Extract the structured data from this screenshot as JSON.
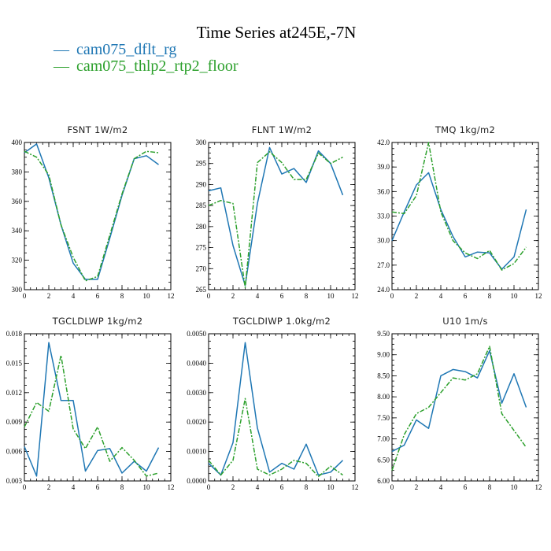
{
  "figure": {
    "title": "Time Series at245E,-7N",
    "colors": {
      "s1": "#1f77b4",
      "s2": "#2ca02c"
    }
  },
  "legend": [
    {
      "marker": "—",
      "label": "cam075_dflt_rg"
    },
    {
      "marker": "—",
      "label": "cam075_thlp2_rtp2_floor"
    }
  ],
  "chart_data": [
    {
      "type": "line",
      "title": "FSNT   1W/m2",
      "xlim": [
        0,
        12
      ],
      "ylim": [
        300,
        400
      ],
      "xticks": [
        0,
        2,
        4,
        6,
        8,
        10,
        12
      ],
      "yticks": [
        300,
        320,
        340,
        360,
        380,
        400
      ],
      "ytick_labels": [
        "300",
        "320",
        "340",
        "360",
        "380",
        "400"
      ],
      "x": [
        0,
        1,
        2,
        3,
        4,
        5,
        6,
        7,
        8,
        9,
        10,
        11
      ],
      "series": [
        {
          "name": "cam075_dflt_rg",
          "values": [
            393,
            399,
            376,
            344,
            318,
            307,
            307,
            335,
            364,
            389,
            391,
            385
          ]
        },
        {
          "name": "cam075_thlp2_rtp2_floor",
          "values": [
            394,
            390,
            378,
            344,
            322,
            306,
            309,
            337,
            365,
            389,
            394,
            393
          ]
        }
      ]
    },
    {
      "type": "line",
      "title": "FLNT   1W/m2",
      "xlim": [
        0,
        12
      ],
      "ylim": [
        265,
        300
      ],
      "xticks": [
        0,
        2,
        4,
        6,
        8,
        10,
        12
      ],
      "yticks": [
        265,
        270,
        275,
        280,
        285,
        290,
        295,
        300
      ],
      "ytick_labels": [
        "265",
        "270",
        "275",
        "280",
        "285",
        "290",
        "295",
        "300"
      ],
      "x": [
        0,
        1,
        2,
        3,
        4,
        5,
        6,
        7,
        8,
        9,
        10,
        11
      ],
      "series": [
        {
          "name": "cam075_dflt_rg",
          "values": [
            288.5,
            289.2,
            275.5,
            266.0,
            285.5,
            298.8,
            292.5,
            293.8,
            290.5,
            298.0,
            295.0,
            287.5
          ]
        },
        {
          "name": "cam075_thlp2_rtp2_floor",
          "values": [
            285.0,
            286.2,
            285.5,
            265.5,
            295.2,
            297.8,
            295.2,
            291.2,
            291.2,
            297.5,
            295.0,
            296.5
          ]
        }
      ]
    },
    {
      "type": "line",
      "title": "TMQ   1kg/m2",
      "xlim": [
        0,
        12
      ],
      "ylim": [
        24.0,
        42.0
      ],
      "xticks": [
        0,
        2,
        4,
        6,
        8,
        10,
        12
      ],
      "yticks": [
        24.0,
        27.0,
        30.0,
        33.0,
        36.0,
        39.0,
        42.0
      ],
      "ytick_labels": [
        "24.0",
        "27.0",
        "30.0",
        "33.0",
        "36.0",
        "39.0",
        "42.0"
      ],
      "x": [
        0,
        1,
        2,
        3,
        4,
        5,
        6,
        7,
        8,
        9,
        10,
        11
      ],
      "series": [
        {
          "name": "cam075_dflt_rg",
          "values": [
            30.0,
            33.5,
            36.8,
            38.3,
            33.8,
            30.5,
            28.0,
            28.6,
            28.5,
            26.5,
            28.0,
            33.8
          ]
        },
        {
          "name": "cam075_thlp2_rtp2_floor",
          "values": [
            33.5,
            33.3,
            35.5,
            42.0,
            33.5,
            30.0,
            28.5,
            27.8,
            28.8,
            26.4,
            27.2,
            29.2
          ]
        }
      ]
    },
    {
      "type": "line",
      "title": "TGCLDLWP   1kg/m2",
      "xlim": [
        0,
        12
      ],
      "ylim": [
        0.003,
        0.018
      ],
      "xticks": [
        0,
        2,
        4,
        6,
        8,
        10,
        12
      ],
      "yticks": [
        0.003,
        0.006,
        0.009,
        0.012,
        0.015,
        0.018
      ],
      "ytick_labels": [
        "0.003",
        "0.006",
        "0.009",
        "0.012",
        "0.015",
        "0.018"
      ],
      "x": [
        0,
        1,
        2,
        3,
        4,
        5,
        6,
        7,
        8,
        9,
        10,
        11
      ],
      "series": [
        {
          "name": "cam075_dflt_rg",
          "values": [
            0.0065,
            0.0035,
            0.0171,
            0.0112,
            0.0112,
            0.004,
            0.0061,
            0.0063,
            0.0038,
            0.005,
            0.004,
            0.0064
          ]
        },
        {
          "name": "cam075_thlp2_rtp2_floor",
          "values": [
            0.0085,
            0.011,
            0.0101,
            0.0158,
            0.0083,
            0.0063,
            0.0085,
            0.005,
            0.0064,
            0.0051,
            0.0035,
            0.0038
          ]
        }
      ]
    },
    {
      "type": "line",
      "title": "TGCLDIWP   1.0kg/m2",
      "xlim": [
        0,
        12
      ],
      "ylim": [
        0.0,
        0.005
      ],
      "xticks": [
        0,
        2,
        4,
        6,
        8,
        10,
        12
      ],
      "yticks": [
        0.0,
        0.001,
        0.002,
        0.003,
        0.004,
        0.005
      ],
      "ytick_labels": [
        "0.0000",
        "0.0010",
        "0.0020",
        "0.0030",
        "0.0040",
        "0.0050"
      ],
      "x": [
        0,
        1,
        2,
        3,
        4,
        5,
        6,
        7,
        8,
        9,
        10,
        11
      ],
      "series": [
        {
          "name": "cam075_dflt_rg",
          "values": [
            0.0006,
            0.0002,
            0.0013,
            0.0047,
            0.0018,
            0.0003,
            0.0006,
            0.0004,
            0.00125,
            0.0002,
            0.0003,
            0.0007
          ]
        },
        {
          "name": "cam075_thlp2_rtp2_floor",
          "values": [
            0.0007,
            0.0002,
            0.0007,
            0.0028,
            0.0004,
            0.0002,
            0.0004,
            0.0007,
            0.0006,
            0.00015,
            0.0005,
            0.0002
          ]
        }
      ]
    },
    {
      "type": "line",
      "title": "U10   1m/s",
      "xlim": [
        0,
        12
      ],
      "ylim": [
        6.0,
        9.5
      ],
      "xticks": [
        0,
        2,
        4,
        6,
        8,
        10,
        12
      ],
      "yticks": [
        6.0,
        6.5,
        7.0,
        7.5,
        8.0,
        8.5,
        9.0,
        9.5
      ],
      "ytick_labels": [
        "6.00",
        "6.50",
        "7.00",
        "7.50",
        "8.00",
        "8.50",
        "9.00",
        "9.50"
      ],
      "x": [
        0,
        1,
        2,
        3,
        4,
        5,
        6,
        7,
        8,
        9,
        10,
        11
      ],
      "series": [
        {
          "name": "cam075_dflt_rg",
          "values": [
            6.7,
            6.85,
            7.45,
            7.25,
            8.5,
            8.65,
            8.6,
            8.45,
            9.1,
            7.85,
            8.55,
            7.75
          ]
        },
        {
          "name": "cam075_thlp2_rtp2_floor",
          "values": [
            6.25,
            7.1,
            7.6,
            7.75,
            8.1,
            8.45,
            8.4,
            8.55,
            9.2,
            7.6,
            7.2,
            6.8
          ]
        }
      ]
    }
  ]
}
